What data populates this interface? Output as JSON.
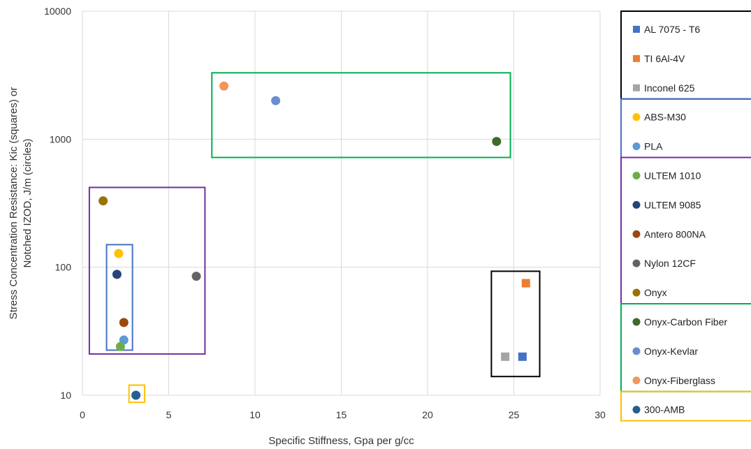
{
  "chart_data": {
    "type": "scatter",
    "xlabel": "Specific Stiffness, Gpa per g/cc",
    "ylabel": "Stress Concentration Resistance: Kic (squares) or Notched IZOD, J/m (circles)",
    "xlim": [
      0,
      30
    ],
    "ylim": [
      10,
      10000
    ],
    "yscale": "log",
    "x_ticks": [
      "0",
      "5",
      "10",
      "15",
      "20",
      "25",
      "30"
    ],
    "y_ticks": [
      "10",
      "100",
      "1000",
      "10000"
    ],
    "grid": true,
    "legend_position": "right",
    "series": [
      {
        "name": "AL 7075 - T6",
        "marker": "square",
        "color": "#4472C4",
        "x": 25.5,
        "y": 20
      },
      {
        "name": "TI 6Al-4V",
        "marker": "square",
        "color": "#ED7D31",
        "x": 25.7,
        "y": 75
      },
      {
        "name": "Inconel 625",
        "marker": "square",
        "color": "#A5A5A5",
        "x": 24.5,
        "y": 20
      },
      {
        "name": "ABS-M30",
        "marker": "circle",
        "color": "#FFC000",
        "x": 2.1,
        "y": 128
      },
      {
        "name": "PLA",
        "marker": "circle",
        "color": "#5B9BD5",
        "x": 2.4,
        "y": 27
      },
      {
        "name": "ULTEM 1010",
        "marker": "circle",
        "color": "#70AD47",
        "x": 2.2,
        "y": 24
      },
      {
        "name": "ULTEM 9085",
        "marker": "circle",
        "color": "#264478",
        "x": 2.0,
        "y": 88
      },
      {
        "name": "Antero 800NA",
        "marker": "circle",
        "color": "#9E480E",
        "x": 2.4,
        "y": 37
      },
      {
        "name": "Nylon 12CF",
        "marker": "circle",
        "color": "#636363",
        "x": 6.6,
        "y": 85
      },
      {
        "name": "Onyx",
        "marker": "circle",
        "color": "#997300",
        "x": 1.2,
        "y": 330
      },
      {
        "name": "Onyx-Carbon Fiber",
        "marker": "circle",
        "color": "#43682B",
        "x": 24.0,
        "y": 960
      },
      {
        "name": "Onyx-Kevlar",
        "marker": "circle",
        "color": "#698ED0",
        "x": 11.2,
        "y": 2000
      },
      {
        "name": "Onyx-Fiberglass",
        "marker": "circle",
        "color": "#F1975A",
        "x": 8.2,
        "y": 2600
      },
      {
        "name": "300-AMB",
        "marker": "circle",
        "color": "#255E91",
        "x": 3.1,
        "y": 10
      }
    ],
    "group_boxes": [
      {
        "color": "#000000",
        "x": [
          23.7,
          26.5
        ],
        "y": [
          14,
          93
        ],
        "legend_items": [
          0,
          2
        ]
      },
      {
        "color": "#4472C4",
        "x": [
          1.4,
          2.9
        ],
        "y": [
          22.5,
          150
        ],
        "legend_items": [
          3,
          4
        ]
      },
      {
        "color": "#7030A0",
        "x": [
          0.4,
          7.1
        ],
        "y": [
          21,
          420
        ],
        "legend_items": [
          5,
          9
        ]
      },
      {
        "color": "#00B050",
        "x": [
          7.5,
          24.8
        ],
        "y": [
          720,
          3300
        ],
        "legend_items": [
          10,
          12
        ]
      },
      {
        "color": "#FFC000",
        "x": [
          2.7,
          3.6
        ],
        "y": [
          8.8,
          12
        ],
        "legend_items": [
          13,
          13
        ]
      }
    ]
  }
}
